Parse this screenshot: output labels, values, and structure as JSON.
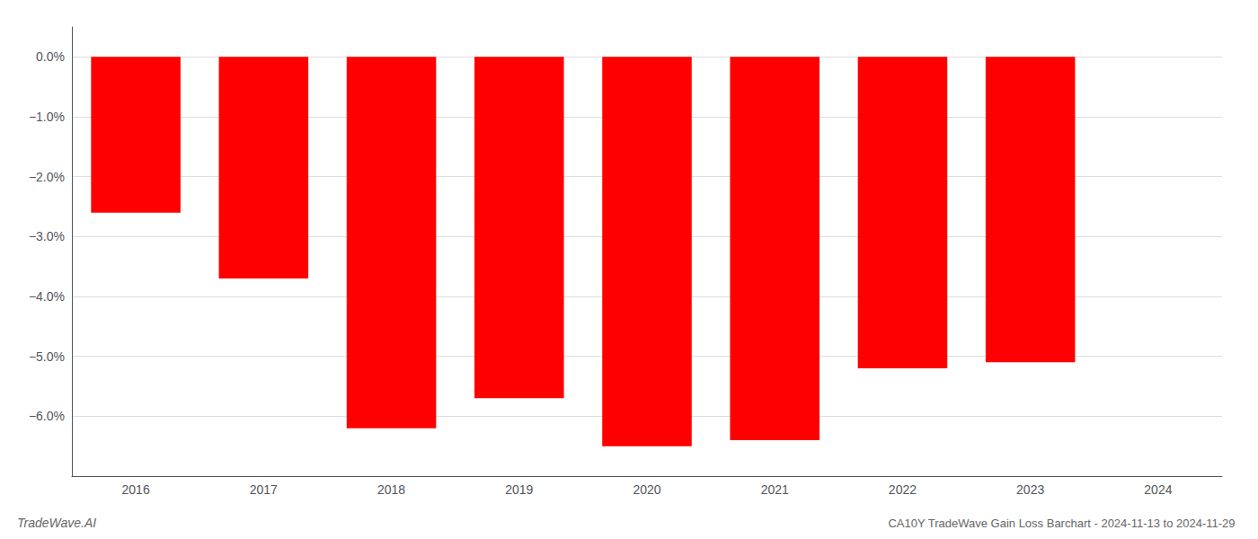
{
  "chart_data": {
    "type": "bar",
    "title": "CA10Y TradeWave Gain Loss Barchart - 2024-11-13 to 2024-11-29",
    "annotations": [
      "TradeWave.AI"
    ],
    "categories": [
      "2016",
      "2017",
      "2018",
      "2019",
      "2020",
      "2021",
      "2022",
      "2023",
      "2024"
    ],
    "values": [
      -0.026,
      -0.037,
      -0.062,
      -0.057,
      -0.065,
      -0.064,
      -0.052,
      -0.051,
      0.0
    ],
    "color": "#ff0000",
    "ylim": [
      -0.07,
      0.005
    ],
    "yticks": [
      {
        "value": 0.0,
        "label": "0.0%"
      },
      {
        "value": -0.01,
        "label": "−1.0%"
      },
      {
        "value": -0.02,
        "label": "−2.0%"
      },
      {
        "value": -0.03,
        "label": "−3.0%"
      },
      {
        "value": -0.04,
        "label": "−4.0%"
      },
      {
        "value": -0.05,
        "label": "−5.0%"
      },
      {
        "value": -0.06,
        "label": "−6.0%"
      }
    ],
    "grid": true
  }
}
